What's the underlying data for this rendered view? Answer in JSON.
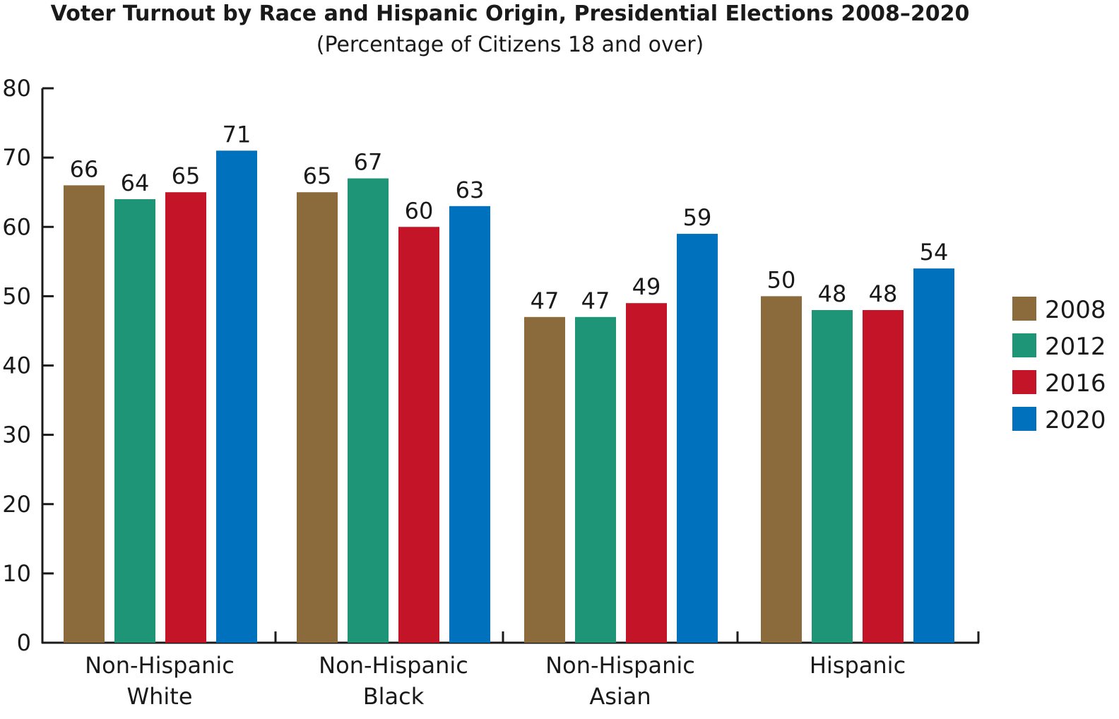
{
  "chart_data": {
    "type": "bar",
    "title": "Voter Turnout by Race and Hispanic Origin, Presidential Elections 2008–2020",
    "subtitle": "(Percentage of Citizens 18 and over)",
    "xlabel": "",
    "ylabel": "",
    "ylim": [
      0,
      80
    ],
    "yticks": [
      0,
      10,
      20,
      30,
      40,
      50,
      60,
      70,
      80
    ],
    "grid": false,
    "legend_position": "right",
    "categories": [
      [
        "Non-Hispanic",
        "White"
      ],
      [
        "Non-Hispanic",
        "Black"
      ],
      [
        "Non-Hispanic",
        "Asian"
      ],
      [
        "Hispanic"
      ]
    ],
    "series": [
      {
        "name": "2008",
        "color": "#8b6a3c",
        "values": [
          66,
          65,
          47,
          50
        ]
      },
      {
        "name": "2012",
        "color": "#1f9577",
        "values": [
          64,
          67,
          47,
          48
        ]
      },
      {
        "name": "2016",
        "color": "#c31527",
        "values": [
          65,
          60,
          49,
          48
        ]
      },
      {
        "name": "2020",
        "color": "#0071bc",
        "values": [
          71,
          63,
          59,
          54
        ]
      }
    ]
  }
}
